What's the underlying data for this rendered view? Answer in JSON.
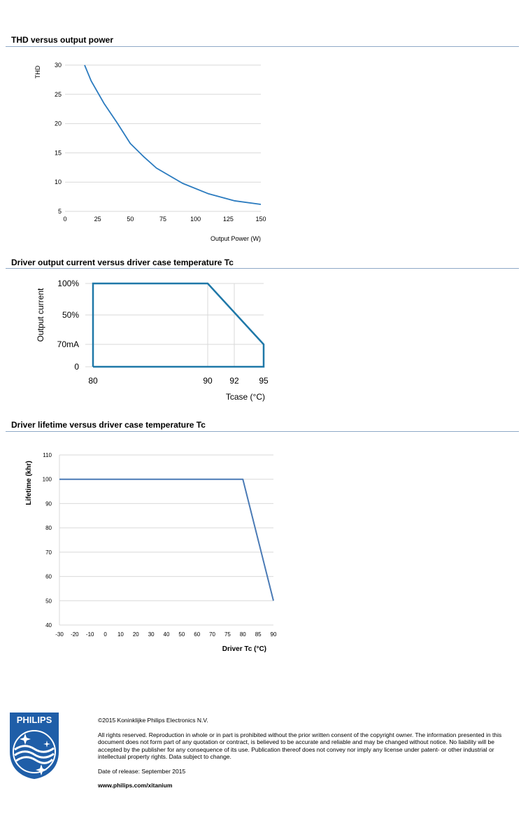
{
  "sections": {
    "thd_title": "THD versus output power",
    "current_title": "Driver output current versus driver case temperature Tc",
    "lifetime_title": "Driver lifetime versus driver case temperature Tc"
  },
  "chart_data": [
    {
      "type": "line",
      "title": "THD versus output power",
      "xlabel": "Output Power (W)",
      "ylabel": "THD",
      "xlim": [
        0,
        150
      ],
      "ylim": [
        5,
        30
      ],
      "xticks": [
        "0",
        "25",
        "50",
        "75",
        "100",
        "125",
        "150"
      ],
      "yticks": [
        "5",
        "10",
        "15",
        "20",
        "25",
        "30"
      ],
      "grid": "horizontal",
      "color": "#2b7bbf",
      "series": [
        {
          "x": [
            15,
            20,
            30,
            40,
            50,
            60,
            70,
            90,
            110,
            130,
            150
          ],
          "values": [
            30,
            27.3,
            23.4,
            20.1,
            16.6,
            14.4,
            12.4,
            9.8,
            8.0,
            6.8,
            6.2
          ]
        }
      ]
    },
    {
      "type": "line",
      "title": "Driver output current versus driver case temperature Tc",
      "xlabel": "Tcase (°C)",
      "ylabel": "Output current",
      "xticks": [
        "80",
        "90",
        "92",
        "95"
      ],
      "yticks": [
        "0",
        "70mA",
        "50%",
        "100%"
      ],
      "grid": "horizontal and vertical",
      "color": "#1f78a8",
      "series": [
        {
          "x": [
            80,
            80,
            90,
            95,
            95,
            80
          ],
          "values": [
            "0",
            "100%",
            "100%",
            "70mA",
            "0",
            "0"
          ]
        }
      ]
    },
    {
      "type": "line",
      "title": "Driver lifetime versus driver case temperature Tc",
      "xlabel": "Driver Tc (°C)",
      "ylabel": "Lifetime (khr)",
      "xlim": [
        -30,
        90
      ],
      "ylim": [
        40,
        110
      ],
      "xticks": [
        "-30",
        "-20",
        "-10",
        "0",
        "10",
        "20",
        "30",
        "40",
        "50",
        "60",
        "70",
        "75",
        "80",
        "85",
        "90"
      ],
      "yticks": [
        "40",
        "50",
        "60",
        "70",
        "80",
        "90",
        "100",
        "110"
      ],
      "grid": "horizontal",
      "color": "#4a7ab5",
      "series": [
        {
          "x": [
            -30,
            80,
            90
          ],
          "values": [
            100,
            100,
            50
          ]
        }
      ]
    }
  ],
  "logo": {
    "word": "PHILIPS",
    "color": "#1f5ea8"
  },
  "footer": {
    "copyright": "©2015 Koninklijke Philips Electronics N.V.",
    "rights": "All rights reserved. Reproduction in whole or in part is prohibited without the prior written consent of the copyright owner.  The information presented in this document does not form part of any quotation or contract, is believed to be accurate and reliable and may be changed without notice. No liability will be accepted  by the publisher for any consequence of its use. Publication thereof does not convey nor imply any license under patent- or other industrial or intellectual property rights. Data subject to change.",
    "release": "Date of release: September 2015",
    "url": "www.philips.com/xitanium"
  }
}
